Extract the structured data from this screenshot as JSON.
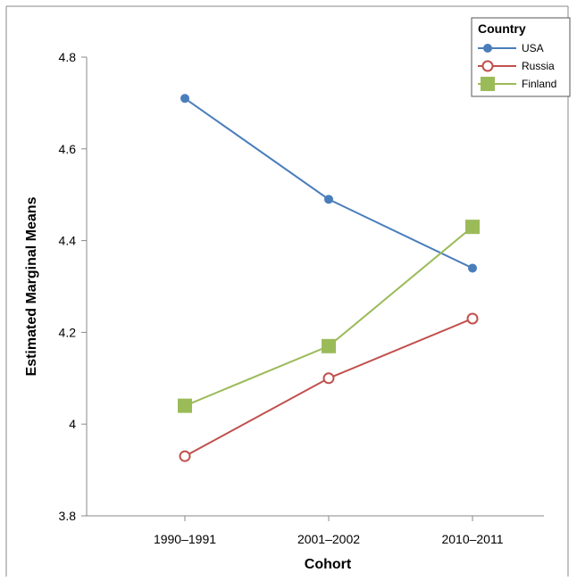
{
  "chart_data": {
    "type": "line",
    "xlabel": "Cohort",
    "ylabel": "Estimated Marginal Means",
    "categories": [
      "1990–1991",
      "2001–2002",
      "2010–2011"
    ],
    "ylim": [
      3.8,
      4.8
    ],
    "yticks": [
      3.8,
      4,
      4.2,
      4.4,
      4.6,
      4.8
    ],
    "ytick_labels": [
      "3.8",
      "4",
      "4.2",
      "4.4",
      "4.6",
      "4.8"
    ],
    "grid": false,
    "legend": {
      "title": "Country",
      "placement": "top-right"
    },
    "series": [
      {
        "name": "USA",
        "values": [
          4.71,
          4.49,
          4.34
        ],
        "color": "#4a7ebb",
        "marker": "filled-circle"
      },
      {
        "name": "Russia",
        "values": [
          3.93,
          4.1,
          4.23
        ],
        "color": "#c0504d",
        "marker": "open-circle"
      },
      {
        "name": "Finland",
        "values": [
          4.04,
          4.17,
          4.43
        ],
        "color": "#9bbb59",
        "marker": "filled-square"
      }
    ]
  }
}
